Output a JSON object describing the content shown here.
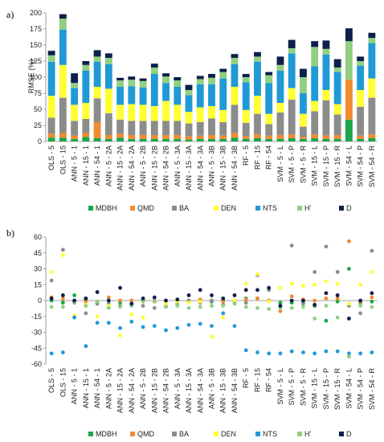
{
  "chart_data": [
    {
      "type": "bar",
      "stacked": true,
      "panel_label": "a)",
      "ylabel": "RMSE (%)",
      "ylim": [
        0,
        200
      ],
      "yticks": [
        0,
        25,
        50,
        75,
        100,
        125,
        150,
        175,
        200
      ],
      "grid": false,
      "legend_position": "bottom",
      "categories": [
        "OLS - 5",
        "OLS - 15",
        "ANN - 5 - 1",
        "ANN - 15 - 1",
        "ANN - 54 - 1",
        "ANN - 5 - 2A",
        "ANN - 15 - 2A",
        "ANN - 54 - 2A",
        "ANN - 5 - 2B",
        "ANN - 15 - 2B",
        "ANN - 54 - 2B",
        "ANN - 5 - 3A",
        "ANN - 15 - 3A",
        "ANN - 54 - 3A",
        "ANN - 5 - 3B",
        "ANN - 15 - 3B",
        "ANN - 54 - 3B",
        "RF - 5",
        "RF - 15",
        "RF - 54",
        "SVM - 5 - L",
        "SVM - 5 - P",
        "SVM - 5 - R",
        "SVM - 15 - L",
        "SVM - 15 - P",
        "SVM - 15 - R",
        "SVM - 54 - L",
        "SVM - 54 - P",
        "SVM - 54 - R"
      ],
      "series": [
        {
          "name": "MDBH",
          "color": "#1aa64a",
          "values": [
            6,
            6,
            4,
            7,
            5,
            4,
            6,
            4,
            4,
            4,
            4,
            4,
            3,
            4,
            4,
            4,
            6,
            4,
            5,
            4,
            4,
            5,
            4,
            5,
            4,
            4,
            34,
            4,
            5
          ]
        },
        {
          "name": "QMD",
          "color": "#f28a30",
          "values": [
            6,
            7,
            5,
            6,
            25,
            6,
            6,
            6,
            6,
            6,
            6,
            6,
            5,
            5,
            6,
            5,
            7,
            4,
            6,
            5,
            6,
            6,
            3,
            6,
            5,
            6,
            62,
            5,
            6
          ]
        },
        {
          "name": "BA",
          "color": "#8c8c8c",
          "values": [
            25,
            55,
            23,
            22,
            37,
            34,
            22,
            22,
            22,
            22,
            22,
            22,
            20,
            21,
            26,
            21,
            44,
            21,
            32,
            18,
            35,
            54,
            16,
            36,
            55,
            32,
            0,
            45,
            57
          ]
        },
        {
          "name": "DEN",
          "color": "#ffff33",
          "values": [
            34,
            51,
            25,
            25,
            18,
            38,
            23,
            26,
            25,
            23,
            31,
            25,
            18,
            23,
            19,
            19,
            28,
            20,
            28,
            16,
            15,
            18,
            20,
            16,
            16,
            16,
            0,
            26,
            30
          ]
        },
        {
          "name": "NTS",
          "color": "#1f9ad6",
          "values": [
            53,
            55,
            26,
            50,
            39,
            38,
            28,
            28,
            27,
            50,
            28,
            28,
            26,
            36,
            34,
            49,
            35,
            43,
            53,
            48,
            50,
            54,
            32,
            54,
            55,
            50,
            0,
            38,
            55
          ]
        },
        {
          "name": "H'",
          "color": "#90d080",
          "values": [
            10,
            17,
            8,
            9,
            8,
            10,
            10,
            10,
            10,
            10,
            10,
            10,
            8,
            8,
            10,
            10,
            10,
            8,
            8,
            12,
            9,
            8,
            25,
            30,
            9,
            7,
            60,
            7,
            8
          ]
        },
        {
          "name": "D",
          "color": "#0d1f4a",
          "values": [
            7,
            7,
            15,
            6,
            10,
            7,
            4,
            5,
            4,
            6,
            5,
            5,
            8,
            5,
            6,
            5,
            6,
            5,
            7,
            5,
            13,
            13,
            13,
            9,
            13,
            13,
            20,
            7,
            8
          ]
        }
      ]
    },
    {
      "type": "scatter",
      "panel_label": "b)",
      "ylabel": "",
      "ylim": [
        -60,
        60
      ],
      "yticks": [
        -60,
        -45,
        -30,
        -15,
        0,
        15,
        30,
        45,
        60
      ],
      "grid": false,
      "legend_position": "bottom",
      "categories": [
        "OLS - 5",
        "OLS - 15",
        "ANN - 5 - 1",
        "ANN - 15 - 1",
        "ANN - 54 - 1",
        "ANN - 5 - 2A",
        "ANN - 15 - 2A",
        "ANN - 54 - 2A",
        "ANN - 5 - 2B",
        "ANN - 15 - 2B",
        "ANN - 54 - 2B",
        "ANN - 5 - 3A",
        "ANN - 15 - 3A",
        "ANN - 54 - 3A",
        "ANN - 5 - 3B",
        "ANN - 15 - 3B",
        "ANN - 54 - 3B",
        "RF - 5",
        "RF - 15",
        "RF - 54",
        "SVM - 5 - L",
        "SVM - 5 - P",
        "SVM - 5 - R",
        "SVM - 15 - L",
        "SVM - 15 - P",
        "SVM - 15 - R",
        "SVM - 54 - L",
        "SVM - 54 - P",
        "SVM - 54 - R"
      ],
      "series": [
        {
          "name": "MDBH",
          "color": "#1aa64a",
          "values": [
            0,
            -2,
            5,
            0,
            -2,
            0,
            -2,
            0,
            0,
            -1,
            0,
            -1,
            0,
            0,
            -1,
            0,
            0,
            2,
            2,
            0,
            -2,
            -2,
            -1,
            -5,
            -19,
            -1,
            30,
            -2,
            -1
          ]
        },
        {
          "name": "QMD",
          "color": "#f28a30",
          "values": [
            3,
            2,
            0,
            -1,
            -1,
            3,
            0,
            0,
            0,
            0,
            0,
            0,
            0,
            1,
            0,
            -1,
            0,
            1,
            2,
            0,
            -10,
            4,
            1,
            0,
            2,
            2,
            56,
            -1,
            3
          ]
        },
        {
          "name": "BA",
          "color": "#8c8c8c",
          "values": [
            19,
            48,
            -2,
            -12,
            -3,
            -3,
            -5,
            -3,
            -5,
            -7,
            -5,
            -3,
            0,
            -2,
            0,
            -4,
            -2,
            -2,
            24,
            10,
            -5,
            52,
            -3,
            27,
            51,
            27,
            -5,
            -12,
            47
          ]
        },
        {
          "name": "DEN",
          "color": "#ffff33",
          "values": [
            27,
            43,
            -14,
            -4,
            -15,
            -5,
            -33,
            -13,
            -16,
            -1,
            -3,
            -1,
            -2,
            -1,
            -34,
            -16,
            0,
            16,
            25,
            -1,
            12,
            16,
            14,
            15,
            18,
            16,
            -3,
            15,
            27
          ]
        },
        {
          "name": "NTS",
          "color": "#1f9ad6",
          "values": [
            -50,
            -49,
            -16,
            -43,
            -21,
            -21,
            -26,
            -20,
            -25,
            -24,
            -28,
            -26,
            -23,
            -22,
            -24,
            -12,
            -24,
            -47,
            -49,
            -50,
            -50,
            -48,
            -49,
            -50,
            -48,
            -48,
            -50,
            -50,
            -49
          ]
        },
        {
          "name": "H'",
          "color": "#90d080",
          "values": [
            -6,
            -6,
            -1,
            -5,
            -1,
            -7,
            -6,
            -5,
            -1,
            -1,
            -6,
            -5,
            -7,
            -6,
            -5,
            -5,
            -3,
            -6,
            -7,
            -8,
            -7,
            -7,
            -6,
            -17,
            -5,
            -16,
            -53,
            -5,
            -6
          ]
        },
        {
          "name": "D",
          "color": "#0d1f4a",
          "values": [
            2,
            5,
            0,
            2,
            8,
            0,
            12,
            -3,
            2,
            3,
            0,
            1,
            5,
            10,
            5,
            2,
            5,
            10,
            10,
            12,
            -5,
            0,
            0,
            -4,
            7,
            5,
            -17,
            0,
            7
          ]
        }
      ]
    }
  ],
  "legend": [
    {
      "label": "MDBH",
      "color": "#1aa64a"
    },
    {
      "label": "QMD",
      "color": "#f28a30"
    },
    {
      "label": "BA",
      "color": "#8c8c8c"
    },
    {
      "label": "DEN",
      "color": "#ffff33"
    },
    {
      "label": "NTS",
      "color": "#1f9ad6"
    },
    {
      "label": "H'",
      "color": "#90d080"
    },
    {
      "label": "D",
      "color": "#0d1f4a"
    }
  ]
}
